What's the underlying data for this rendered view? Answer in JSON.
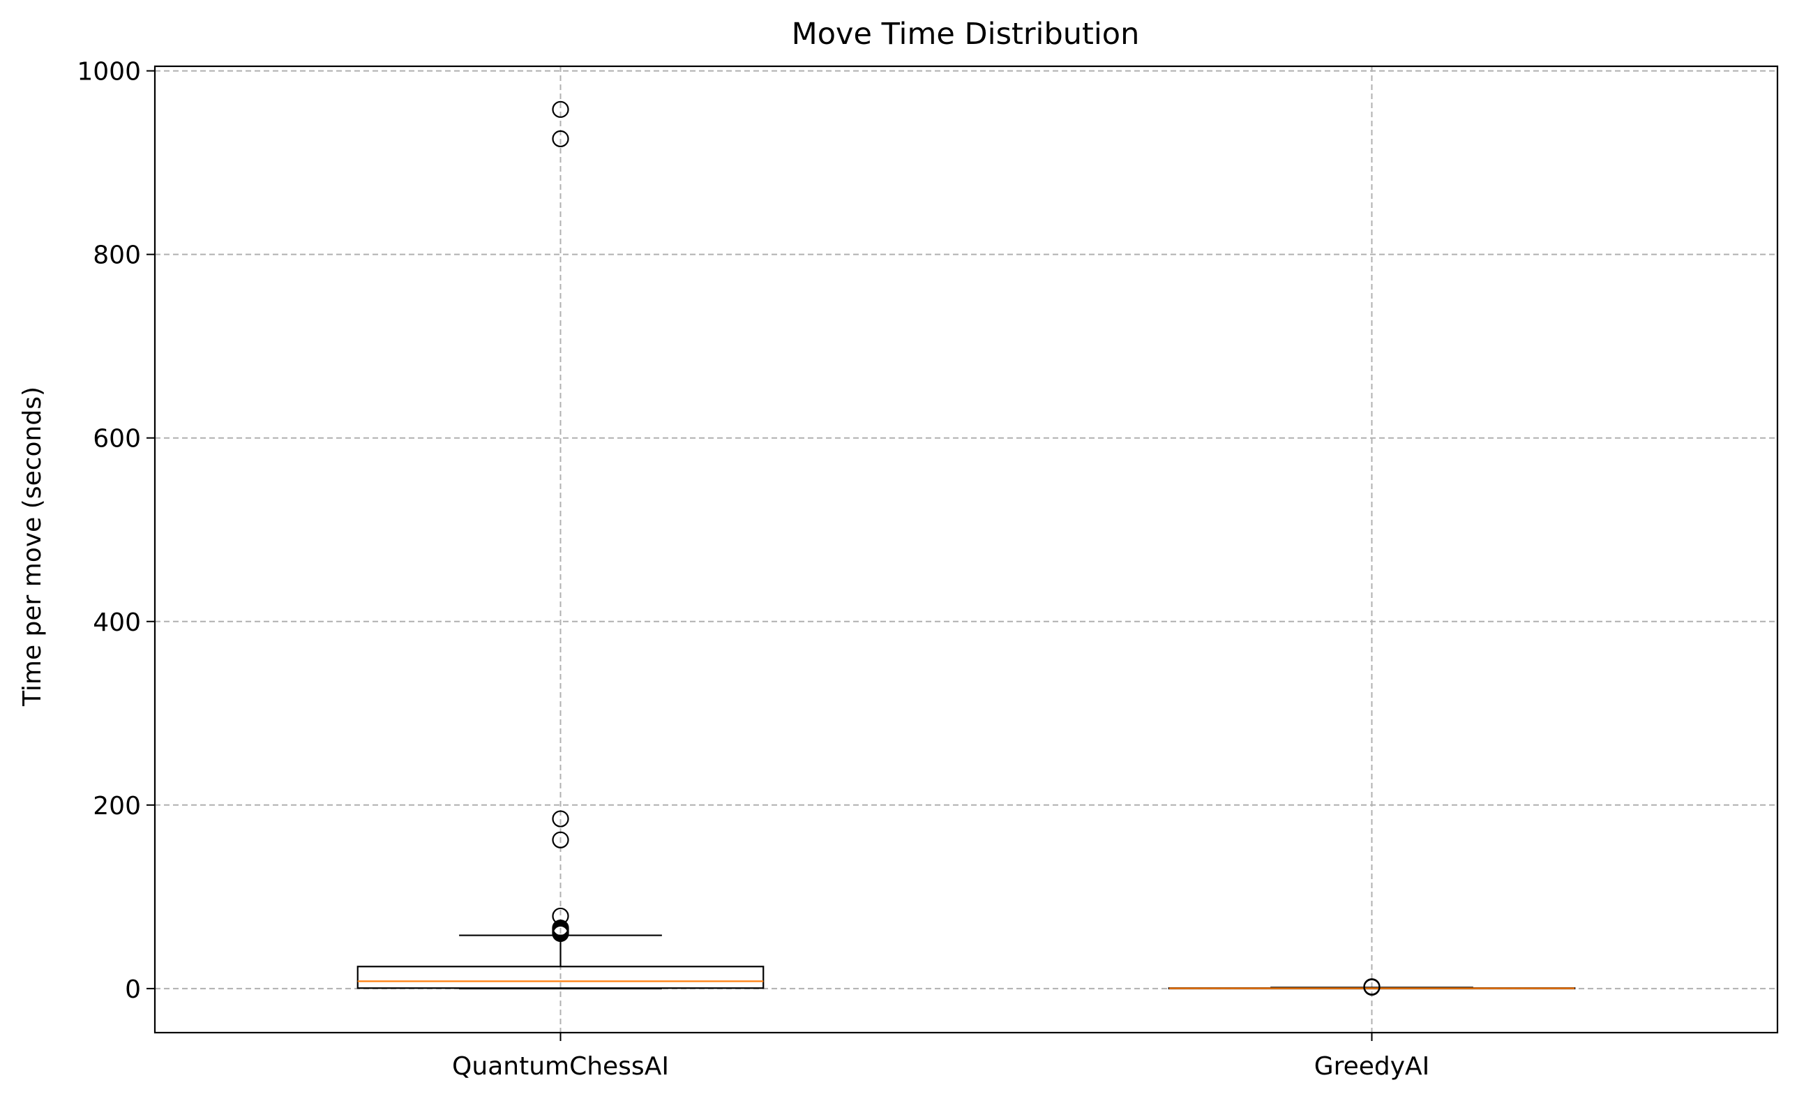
{
  "chart_data": {
    "type": "boxplot",
    "title": "Move Time Distribution",
    "xlabel": "",
    "ylabel": "Time per move (seconds)",
    "ylim": [
      -48,
      1005
    ],
    "yticks": [
      0,
      200,
      400,
      600,
      800,
      1000
    ],
    "grid": true,
    "categories": [
      "QuantumChessAI",
      "GreedyAI"
    ],
    "boxes": [
      {
        "category": "QuantumChessAI",
        "whisker_low": 0,
        "q1": 0.5,
        "median": 8,
        "q3": 24,
        "whisker_high": 58,
        "outliers": [
          60,
          61,
          62,
          63,
          64,
          65,
          66,
          79,
          162,
          185,
          926,
          958
        ]
      },
      {
        "category": "GreedyAI",
        "whisker_low": 0,
        "q1": 0,
        "median": 0.3,
        "q3": 0.6,
        "whisker_high": 1.2,
        "outliers": [
          1.5,
          1.8,
          2.0
        ]
      }
    ],
    "colors": {
      "box": "#000000",
      "median": "#ff7f0e",
      "grid": "#b0b0b0"
    }
  }
}
